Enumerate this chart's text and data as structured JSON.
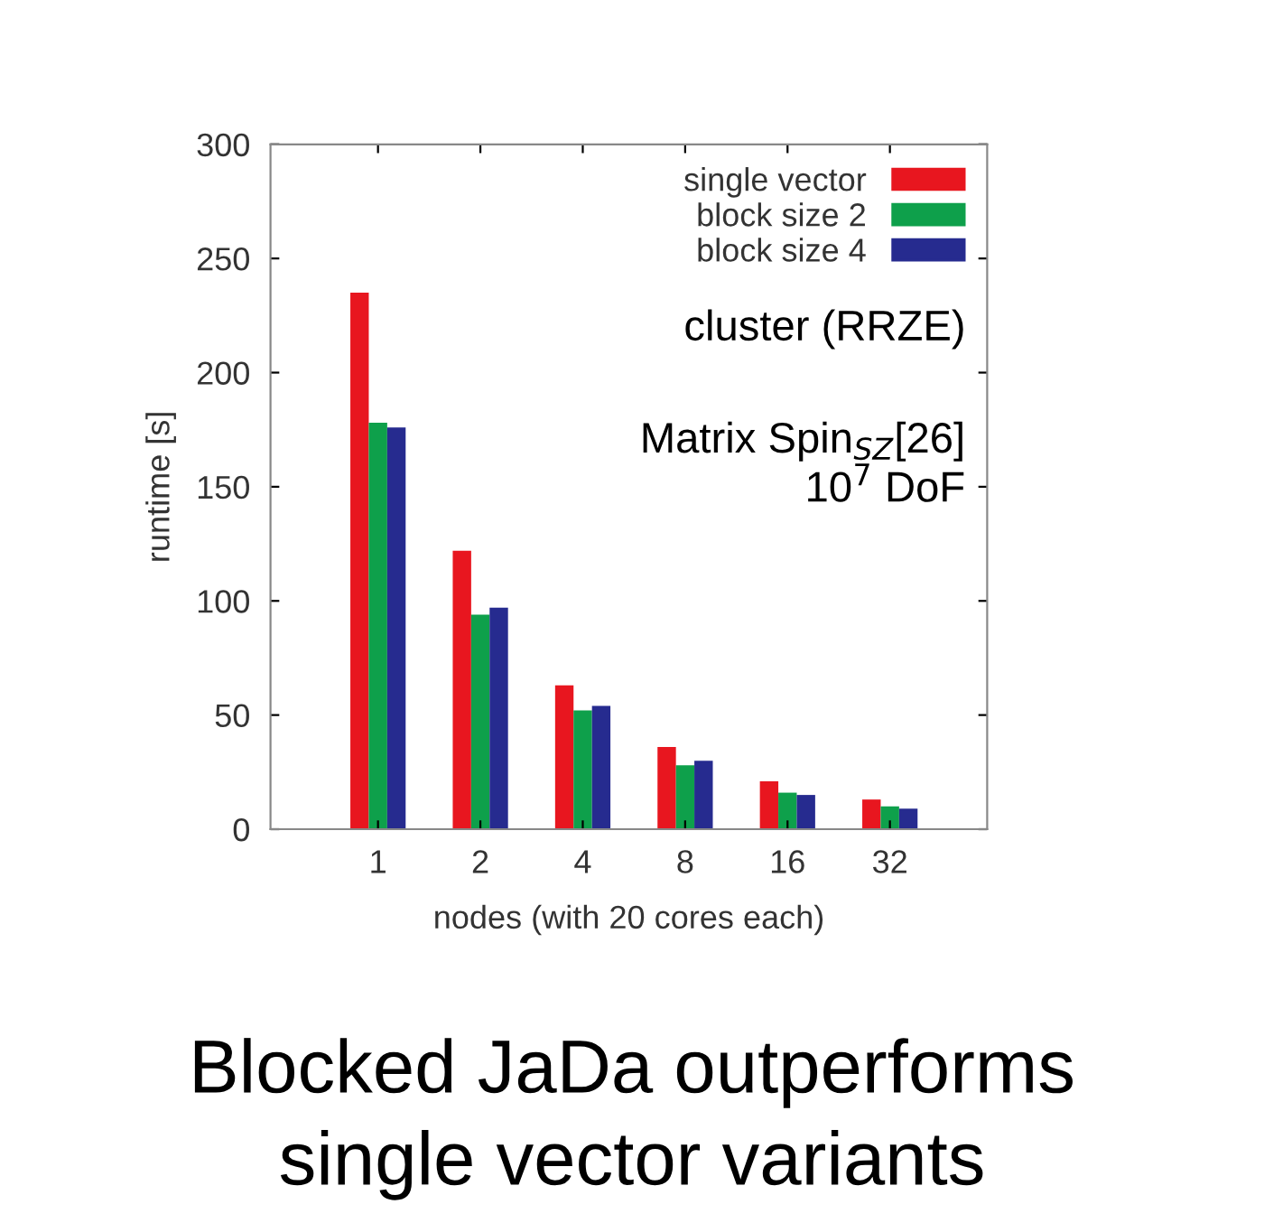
{
  "chart_data": {
    "type": "bar",
    "categories": [
      "1",
      "2",
      "4",
      "8",
      "16",
      "32"
    ],
    "series": [
      {
        "name": "single vector",
        "color": "#e8161f",
        "values": [
          235,
          122,
          63,
          36,
          21,
          13
        ]
      },
      {
        "name": "block size 2",
        "color": "#0ea04b",
        "values": [
          178,
          94,
          52,
          28,
          16,
          10
        ]
      },
      {
        "name": "block size 4",
        "color": "#262b8f",
        "values": [
          176,
          97,
          54,
          30,
          15,
          9
        ]
      }
    ],
    "xlabel": "nodes (with 20 cores each)",
    "ylabel": "runtime [s]",
    "ylim": [
      0,
      300
    ],
    "yticks": [
      0,
      50,
      100,
      150,
      200,
      250,
      300
    ],
    "legend": "top right",
    "grid": false,
    "annotations": [
      "cluster (RRZE)",
      "Matrix Spin$_{SZ}$[26]\n10$^{7}$ DoF",
      "Blocked JaDa outperforms\nsingle vector variants"
    ]
  }
}
